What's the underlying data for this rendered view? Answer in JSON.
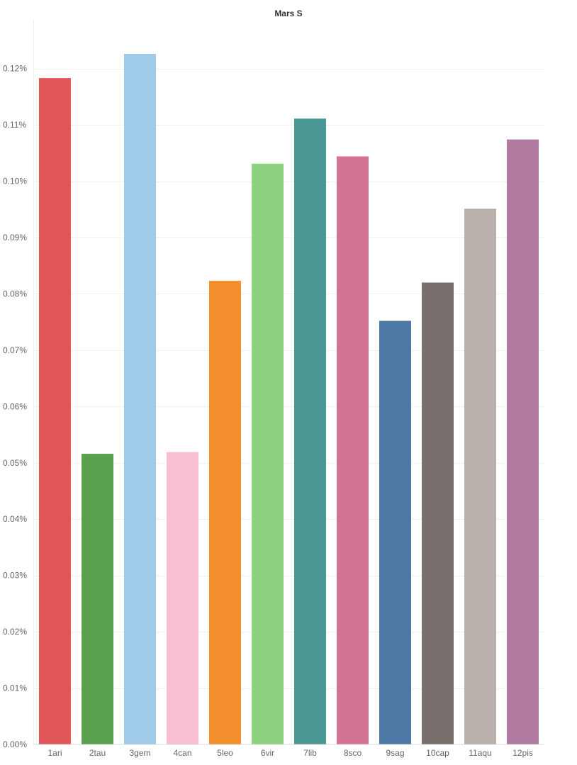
{
  "chart_data": {
    "type": "bar",
    "title": "Mars S",
    "xlabel": "",
    "ylabel": "",
    "categories": [
      "1ari",
      "2tau",
      "3gem",
      "4can",
      "5leo",
      "6vir",
      "7lib",
      "8sco",
      "9sag",
      "10cap",
      "11aqu",
      "12pis"
    ],
    "values": [
      0.1183,
      0.0516,
      0.1226,
      0.0519,
      0.0823,
      0.1031,
      0.1111,
      0.1044,
      0.0752,
      0.082,
      0.0951,
      0.1074
    ],
    "value_unit": "%",
    "ylim": [
      0,
      0.13
    ],
    "y_ticks": [
      0,
      0.01,
      0.02,
      0.03,
      0.04,
      0.05,
      0.06,
      0.07,
      0.08,
      0.09,
      0.1,
      0.11,
      0.12
    ],
    "y_tick_labels": [
      "0.00%",
      "0.01%",
      "0.02%",
      "0.03%",
      "0.04%",
      "0.05%",
      "0.06%",
      "0.07%",
      "0.08%",
      "0.09%",
      "0.10%",
      "0.11%",
      "0.12%"
    ],
    "colors": [
      "#e15759",
      "#59a14f",
      "#a0cbe8",
      "#fabfd2",
      "#f28e2b",
      "#8cd17d",
      "#499894",
      "#d37295",
      "#4e79a7",
      "#79706e",
      "#bab0ac",
      "#b07aa1"
    ],
    "grid": true,
    "legend": "none"
  }
}
